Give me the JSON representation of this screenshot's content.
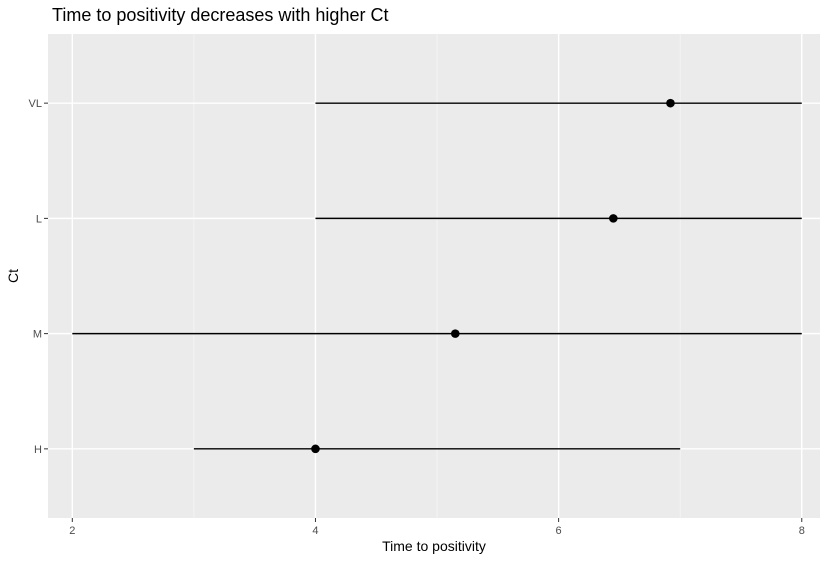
{
  "chart_data": {
    "type": "pointrange",
    "title": "Time to positivity decreases with higher Ct",
    "xlabel": "Time to positivity",
    "ylabel": "Ct",
    "xlim": [
      1.8,
      8.15
    ],
    "x_ticks": [
      2,
      4,
      6,
      8
    ],
    "x_tick_labels": [
      "2",
      "4",
      "6",
      "8"
    ],
    "categories": [
      "H",
      "M",
      "L",
      "VL"
    ],
    "series": [
      {
        "points": [
          {
            "category": "H",
            "x": 4.0,
            "xmin": 3,
            "xmax": 7
          },
          {
            "category": "M",
            "x": 5.15,
            "xmin": 2,
            "xmax": 8
          },
          {
            "category": "L",
            "x": 6.45,
            "xmin": 4,
            "xmax": 8
          },
          {
            "category": "VL",
            "x": 6.92,
            "xmin": 4,
            "xmax": 8
          }
        ]
      }
    ],
    "grid": true,
    "legend": "none",
    "colors": {
      "panel_background": "#ebebeb",
      "major_grid": "#ffffff",
      "minor_grid": "#f5f5f5",
      "point": "#000000",
      "range_line": "#000000",
      "tick_mark": "#333333",
      "tick_label": "#4d4d4d"
    }
  }
}
